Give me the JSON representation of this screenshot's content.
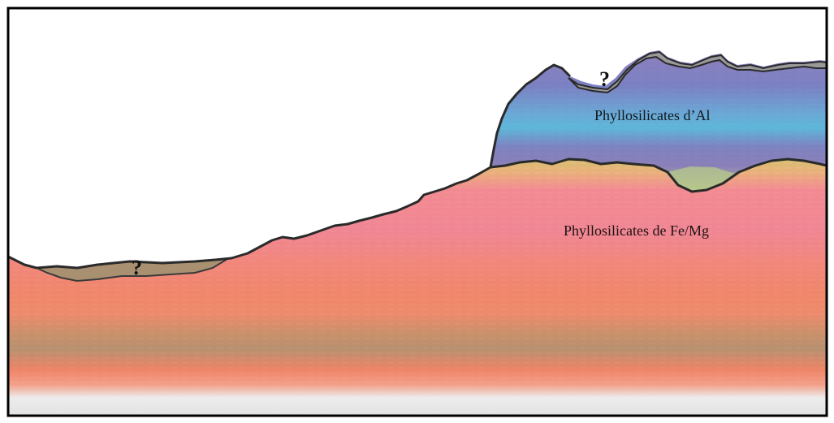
{
  "diagram": {
    "labels": {
      "al_layer": "Phyllosilicates d’Al",
      "fe_mg_layer": "Phyllosilicates de Fe/Mg",
      "unknown_left": "?",
      "unknown_top": "?"
    },
    "colors": {
      "border": "#000000",
      "outline": "#2a2a2a",
      "unknown_fill_left": "#a89070",
      "unknown_fill_top": "#9a9a9a",
      "al_purple": "#7b7fc0",
      "al_blue": "#5fb5d8",
      "al_green": "#b9c98a",
      "fe_yellow": "#d9bf6a",
      "fe_pink": "#ee8393",
      "fe_salmon": "#f28c6a",
      "fe_brown": "#b0906a",
      "bottom_grey": "#e6e6e6"
    }
  }
}
